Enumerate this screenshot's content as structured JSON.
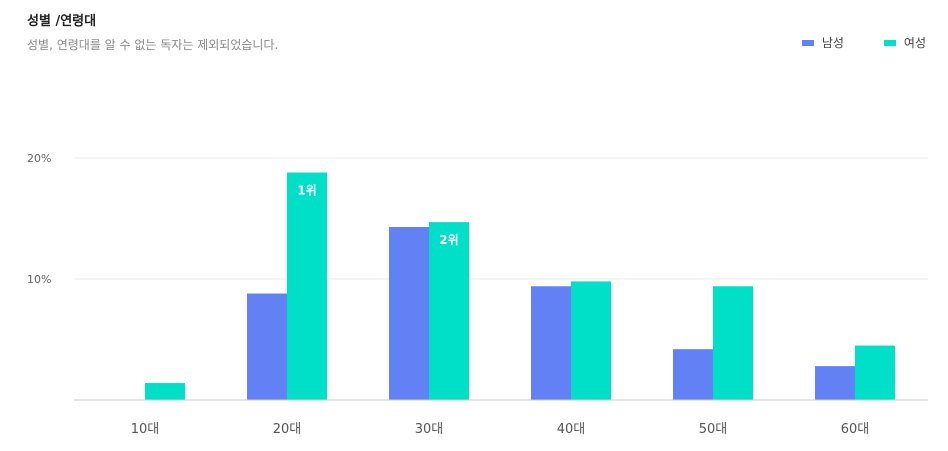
{
  "header": {
    "title": "성별 /연령대",
    "subtitle": "성별, 연령대를 알 수 없는 독자는 제외되었습니다."
  },
  "chart_data": {
    "type": "bar",
    "categories": [
      "10대",
      "20대",
      "30대",
      "40대",
      "50대",
      "60대"
    ],
    "series": [
      {
        "name": "남성",
        "color": "#6281f5",
        "values": [
          0,
          8.8,
          14.3,
          9.4,
          4.2,
          2.8
        ]
      },
      {
        "name": "여성",
        "color": "#00dfc8",
        "values": [
          1.4,
          18.8,
          14.7,
          9.8,
          9.4,
          4.5
        ]
      }
    ],
    "y_ticks": [
      {
        "value": 10,
        "label": "10%"
      },
      {
        "value": 20,
        "label": "20%"
      }
    ],
    "ylim": [
      0,
      20
    ],
    "grid": true,
    "legend_position": "top-right",
    "annotations": [
      {
        "series": 1,
        "category": 1,
        "text": "1위"
      },
      {
        "series": 1,
        "category": 2,
        "text": "2위"
      }
    ]
  }
}
